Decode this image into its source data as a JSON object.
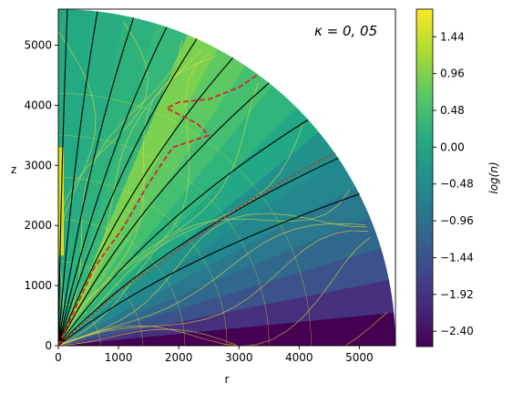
{
  "chart_data": {
    "type": "heatmap",
    "annotation": "κ = 0, 05",
    "xlabel": "r",
    "ylabel": "z",
    "xlim": [
      0,
      5600
    ],
    "ylim": [
      0,
      5600
    ],
    "xticks": [
      "0",
      "1000",
      "2000",
      "3000",
      "4000",
      "5000"
    ],
    "yticks": [
      "0",
      "1000",
      "2000",
      "3000",
      "4000",
      "5000"
    ],
    "domain_radius": 5600,
    "colorbar": {
      "label": "log(n)",
      "range": [
        -2.6,
        1.8
      ],
      "colormap": "viridis",
      "ticks": [
        "1.44",
        "0.96",
        "0.48",
        "0.00",
        "−0.48",
        "−0.96",
        "−1.44",
        "−1.92",
        "−2.40"
      ],
      "tick_values": [
        1.44,
        0.96,
        0.48,
        0.0,
        -0.48,
        -0.96,
        -1.44,
        -1.92,
        -2.4
      ]
    },
    "field_lines": {
      "color": "#000000",
      "endpoints_r": [
        150,
        650,
        1250,
        1800,
        2300,
        2900,
        3500,
        4150,
        4650,
        5000
      ]
    },
    "contours_color": "#f2e030",
    "dashed_curve": {
      "color": "#d62728",
      "points": [
        [
          0,
          0
        ],
        [
          600,
          1300
        ],
        [
          1100,
          2000
        ],
        [
          1500,
          2700
        ],
        [
          1900,
          3300
        ],
        [
          2500,
          3500
        ],
        [
          2300,
          3700
        ],
        [
          1800,
          3950
        ],
        [
          2000,
          4050
        ],
        [
          2500,
          4100
        ],
        [
          3000,
          4300
        ],
        [
          3300,
          4500
        ]
      ]
    },
    "dotted_curve": {
      "color": "#d62728",
      "points": [
        [
          0,
          0
        ],
        [
          1000,
          900
        ],
        [
          2000,
          1600
        ],
        [
          3000,
          2300
        ],
        [
          4000,
          2900
        ],
        [
          4600,
          3200
        ]
      ]
    }
  }
}
